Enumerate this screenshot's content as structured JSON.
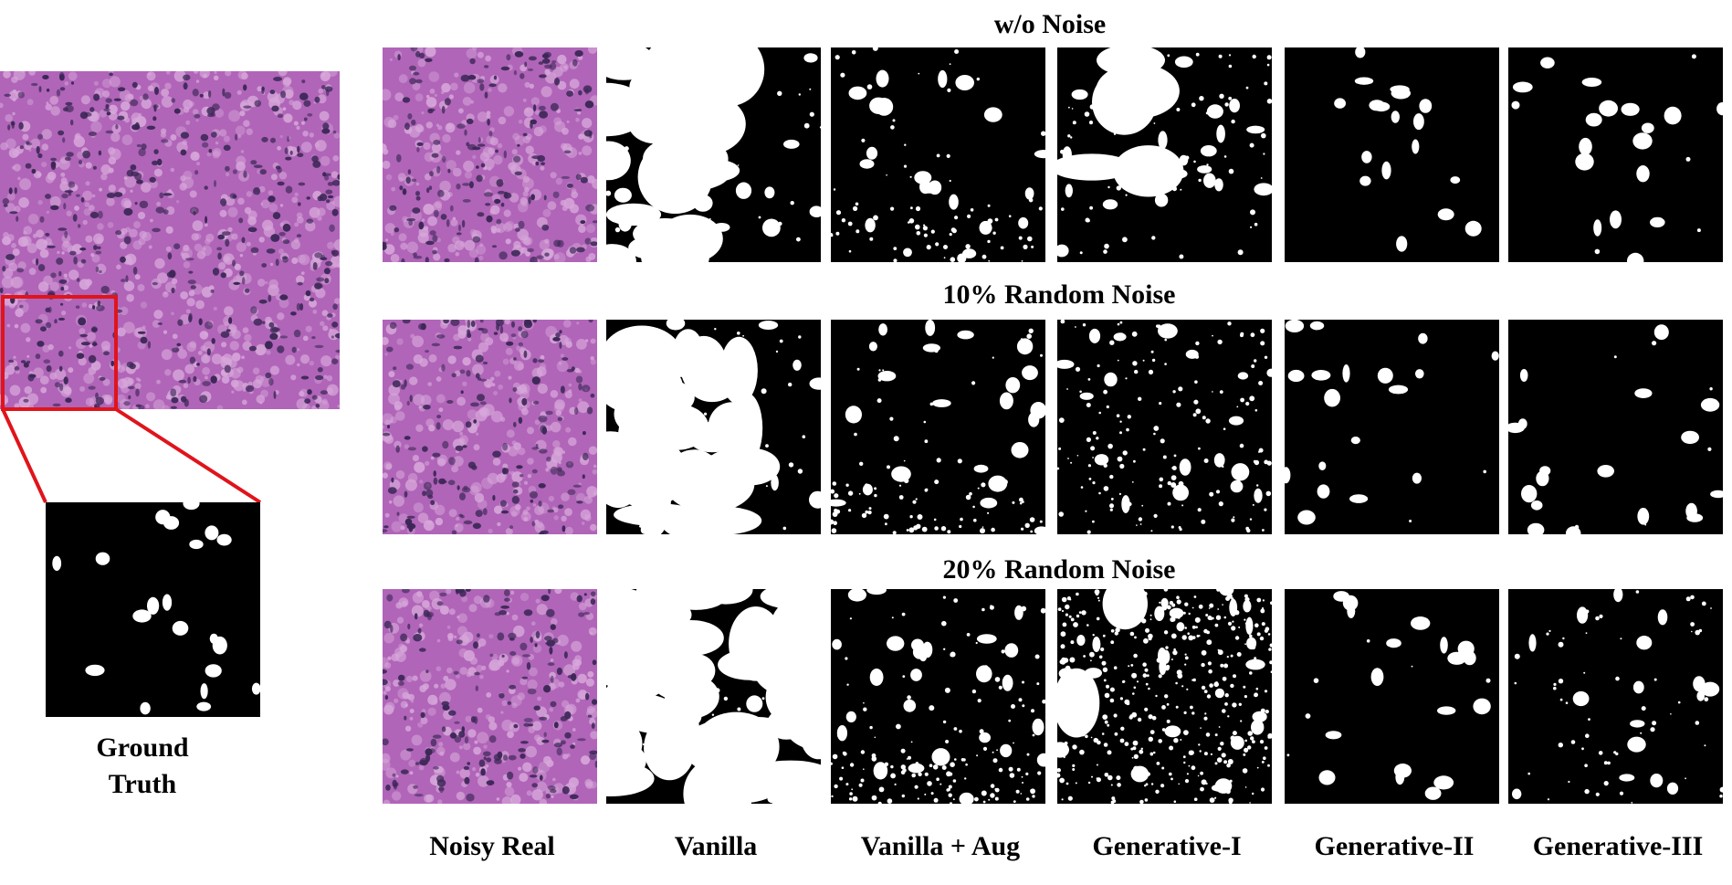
{
  "figure": {
    "rows": [
      {
        "title": "w/o Noise"
      },
      {
        "title": "10% Random Noise"
      },
      {
        "title": "20% Random Noise"
      }
    ],
    "columns": [
      "Noisy Real",
      "Vanilla",
      "Vanilla + Aug",
      "Generative-I",
      "Generative-II",
      "Generative-III"
    ],
    "ground_truth_label_line1": "Ground",
    "ground_truth_label_line2": "Truth",
    "colors": {
      "tissue_base": "#b065b8",
      "tissue_light": "#d7a7da",
      "nucleus": "#3b2756",
      "mask_background": "#000000",
      "mask_foreground": "#ffffff",
      "highlight_box": "#e0141b"
    }
  }
}
